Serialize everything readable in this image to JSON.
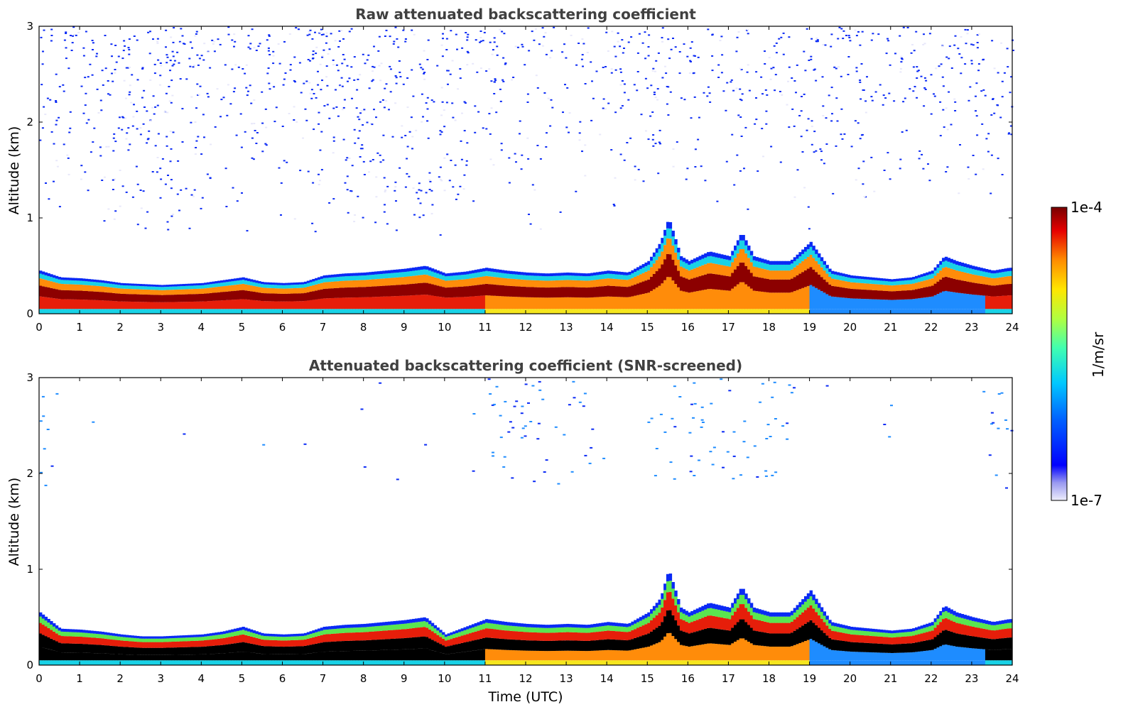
{
  "colors": {
    "blue_high": "#0a2af5",
    "blue_light": "#1e8cff",
    "cyan": "#19d2e6",
    "green": "#5ae650",
    "yellow": "#f5e61e",
    "orange": "#ff8c0a",
    "red": "#e61e0a",
    "darkred": "#8c0000",
    "faint": "#e8e8fa"
  },
  "chart_data": [
    {
      "type": "heatmap",
      "title": "Raw attenuated backscattering coefficient",
      "xlabel": "",
      "ylabel": "Altitude (km)",
      "xlim": [
        0,
        24
      ],
      "ylim": [
        0,
        3
      ],
      "x_ticks": [
        0,
        1,
        2,
        3,
        4,
        5,
        6,
        7,
        8,
        9,
        10,
        11,
        12,
        13,
        14,
        15,
        16,
        17,
        18,
        19,
        20,
        21,
        22,
        23,
        24
      ],
      "y_ticks": [
        0,
        1,
        2,
        3
      ],
      "top_of_boundary_layer_km": {
        "x": [
          0,
          0.5,
          1,
          1.5,
          2,
          2.5,
          3,
          3.5,
          4,
          4.5,
          5,
          5.5,
          6,
          6.5,
          7,
          7.5,
          8,
          8.5,
          9,
          9.5,
          10,
          10.5,
          11,
          11.5,
          12,
          12.5,
          13,
          13.5,
          14,
          14.5,
          15,
          15.3,
          15.5,
          15.8,
          16,
          16.5,
          17,
          17.3,
          17.6,
          18,
          18.5,
          19,
          19.5,
          20,
          20.5,
          21,
          21.5,
          22,
          22.3,
          22.6,
          23,
          23.5,
          23.9
        ],
        "y": [
          0.45,
          0.38,
          0.37,
          0.35,
          0.32,
          0.31,
          0.3,
          0.31,
          0.32,
          0.35,
          0.38,
          0.33,
          0.32,
          0.33,
          0.4,
          0.42,
          0.43,
          0.45,
          0.47,
          0.5,
          0.42,
          0.44,
          0.48,
          0.45,
          0.43,
          0.42,
          0.43,
          0.42,
          0.45,
          0.43,
          0.55,
          0.75,
          1.0,
          0.6,
          0.55,
          0.65,
          0.6,
          0.85,
          0.6,
          0.55,
          0.55,
          0.75,
          0.45,
          0.4,
          0.38,
          0.36,
          0.38,
          0.45,
          0.6,
          0.55,
          0.5,
          0.45,
          0.48
        ]
      },
      "colorbar": {
        "label": "1/m/sr",
        "min_label": "1e-7",
        "max_label": "1e-4",
        "scale": "log"
      }
    },
    {
      "type": "heatmap",
      "title": "Attenuated backscattering coefficient (SNR-screened)",
      "xlabel": "Time (UTC)",
      "ylabel": "Altitude (km)",
      "xlim": [
        0,
        24
      ],
      "ylim": [
        0,
        3
      ],
      "x_ticks": [
        0,
        1,
        2,
        3,
        4,
        5,
        6,
        7,
        8,
        9,
        10,
        11,
        12,
        13,
        14,
        15,
        16,
        17,
        18,
        19,
        20,
        21,
        22,
        23,
        24
      ],
      "y_ticks": [
        0,
        1,
        2,
        3
      ],
      "top_of_boundary_layer_km": {
        "x": [
          0,
          0.5,
          1,
          1.5,
          2,
          2.5,
          3,
          3.5,
          4,
          4.5,
          5,
          5.5,
          6,
          6.5,
          7,
          7.5,
          8,
          8.5,
          9,
          9.5,
          10,
          10.5,
          11,
          11.5,
          12,
          12.5,
          13,
          13.5,
          14,
          14.5,
          15,
          15.3,
          15.5,
          15.8,
          16,
          16.5,
          17,
          17.3,
          17.6,
          18,
          18.5,
          19,
          19.5,
          20,
          20.5,
          21,
          21.5,
          22,
          22.3,
          22.6,
          23,
          23.5,
          23.9
        ],
        "y": [
          0.55,
          0.38,
          0.37,
          0.35,
          0.32,
          0.3,
          0.3,
          0.31,
          0.32,
          0.35,
          0.4,
          0.33,
          0.32,
          0.33,
          0.4,
          0.42,
          0.43,
          0.45,
          0.47,
          0.5,
          0.32,
          0.4,
          0.48,
          0.45,
          0.43,
          0.42,
          0.43,
          0.42,
          0.45,
          0.43,
          0.55,
          0.7,
          1.0,
          0.6,
          0.55,
          0.65,
          0.6,
          0.82,
          0.6,
          0.55,
          0.55,
          0.78,
          0.45,
          0.4,
          0.38,
          0.36,
          0.38,
          0.45,
          0.62,
          0.55,
          0.5,
          0.45,
          0.48
        ]
      }
    }
  ]
}
